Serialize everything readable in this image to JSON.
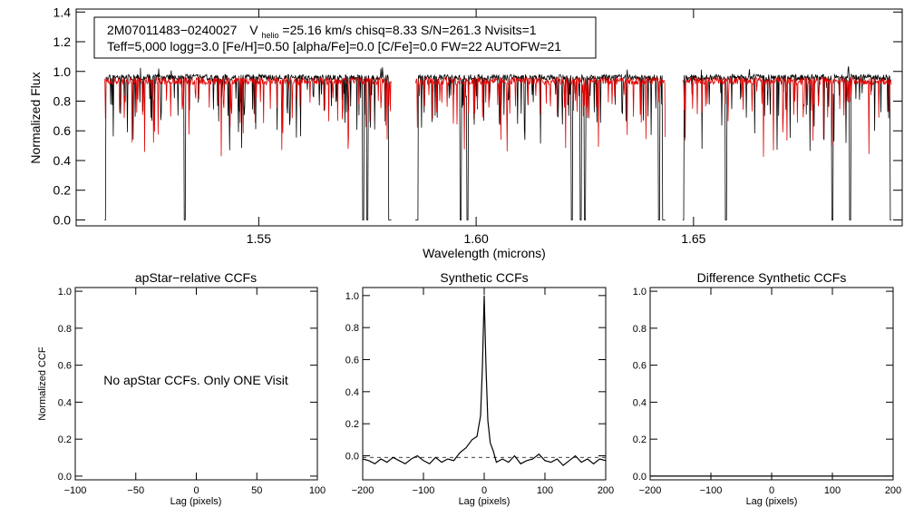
{
  "info_box": {
    "star_id": "2M07011483−0240027",
    "vhelio_prefix": "V",
    "vhelio_sub": "helio",
    "vhelio_rest": "=25.16 km/s  chisq=8.33  S/N=261.3  Nvisits=1",
    "line2": "Teff=5,000 logg=3.0 [Fe/H]=0.50 [alpha/Fe]=0.0 [C/Fe]=0.0 FW=22 AUTOFW=21"
  },
  "colors": {
    "observed": "#000000",
    "model": "#e00000",
    "axis": "#000000"
  },
  "chart_data": [
    {
      "type": "line",
      "xlabel": "Wavelength (microns)",
      "ylabel": "Normalized Flux",
      "xlim": [
        1.508,
        1.698
      ],
      "ylim": [
        -0.04,
        1.42
      ],
      "xticks": [
        1.55,
        1.6,
        1.65
      ],
      "xtick_labels": [
        "1.55",
        "1.60",
        "1.65"
      ],
      "yticks": [
        0.0,
        0.2,
        0.4,
        0.6,
        0.8,
        1.0,
        1.2,
        1.4
      ],
      "ytick_labels": [
        "0.0",
        "0.2",
        "0.4",
        "0.6",
        "0.8",
        "1.0",
        "1.2",
        "1.4"
      ],
      "chips": [
        [
          1.5145,
          1.5805
        ],
        [
          1.586,
          1.6435
        ],
        [
          1.6475,
          1.6955
        ]
      ],
      "strong_lines": [
        1.533,
        1.574,
        1.575,
        1.58,
        1.5865,
        1.5965,
        1.598,
        1.622,
        1.624,
        1.625,
        1.642,
        1.643,
        1.6475,
        1.6575,
        1.682,
        1.686,
        1.6955
      ],
      "series": [
        {
          "color": "#000000",
          "continuum": 0.98,
          "noise": 0.04
        },
        {
          "color": "#e00000",
          "continuum": 0.96,
          "noise": 0.05
        }
      ]
    },
    {
      "type": "line",
      "title": "apStar−relative CCFs",
      "xlabel": "Lag (pixels)",
      "ylabel": "Normalized CCF",
      "xlim": [
        -100,
        100
      ],
      "ylim": [
        -0.02,
        1.02
      ],
      "xticks": [
        -100,
        -50,
        0,
        50,
        100
      ],
      "xtick_labels": [
        "−100",
        "−50",
        "0",
        "50",
        "100"
      ],
      "yticks": [
        0.0,
        0.2,
        0.4,
        0.6,
        0.8,
        1.0
      ],
      "ytick_labels": [
        "0.0",
        "0.2",
        "0.4",
        "0.6",
        "0.8",
        "1.0"
      ],
      "annotation": "No apStar CCFs.  Only ONE Visit"
    },
    {
      "type": "line",
      "title": "Synthetic CCFs",
      "xlabel": "Lag (pixels)",
      "xlim": [
        -200,
        200
      ],
      "ylim": [
        -0.15,
        1.05
      ],
      "xticks": [
        -200,
        -100,
        0,
        100,
        200
      ],
      "xtick_labels": [
        "−200",
        "−100",
        "0",
        "100",
        "200"
      ],
      "yticks": [
        0.0,
        0.2,
        0.4,
        0.6,
        0.8,
        1.0
      ],
      "ytick_labels": [
        "0.0",
        "0.2",
        "0.4",
        "0.6",
        "0.8",
        "1.0"
      ],
      "baseline": -0.01,
      "peak": {
        "x": 0,
        "y": 1.0
      },
      "points": [
        [
          -200,
          -0.02
        ],
        [
          -190,
          -0.03
        ],
        [
          -180,
          -0.05
        ],
        [
          -170,
          -0.02
        ],
        [
          -160,
          -0.04
        ],
        [
          -150,
          -0.01
        ],
        [
          -140,
          -0.03
        ],
        [
          -130,
          -0.05
        ],
        [
          -120,
          -0.02
        ],
        [
          -110,
          0.0
        ],
        [
          -100,
          -0.03
        ],
        [
          -90,
          -0.05
        ],
        [
          -80,
          -0.01
        ],
        [
          -70,
          -0.04
        ],
        [
          -60,
          -0.02
        ],
        [
          -50,
          -0.03
        ],
        [
          -40,
          0.02
        ],
        [
          -30,
          0.05
        ],
        [
          -20,
          0.1
        ],
        [
          -12,
          0.12
        ],
        [
          -6,
          0.25
        ],
        [
          -3,
          0.55
        ],
        [
          0,
          1.0
        ],
        [
          3,
          0.55
        ],
        [
          6,
          0.22
        ],
        [
          10,
          0.08
        ],
        [
          15,
          0.03
        ],
        [
          20,
          -0.04
        ],
        [
          30,
          -0.02
        ],
        [
          40,
          -0.04
        ],
        [
          50,
          0.0
        ],
        [
          60,
          -0.05
        ],
        [
          70,
          -0.03
        ],
        [
          80,
          -0.02
        ],
        [
          90,
          0.01
        ],
        [
          100,
          -0.03
        ],
        [
          110,
          -0.04
        ],
        [
          120,
          -0.02
        ],
        [
          130,
          -0.06
        ],
        [
          140,
          -0.03
        ],
        [
          150,
          0.0
        ],
        [
          160,
          -0.04
        ],
        [
          170,
          -0.02
        ],
        [
          180,
          -0.05
        ],
        [
          190,
          -0.02
        ],
        [
          200,
          -0.03
        ]
      ]
    },
    {
      "type": "line",
      "title": "Difference Synthetic CCFs",
      "xlabel": "Lag (pixels)",
      "xlim": [
        -200,
        200
      ],
      "ylim": [
        -0.02,
        1.02
      ],
      "xticks": [
        -200,
        -100,
        0,
        100,
        200
      ],
      "xtick_labels": [
        "−200",
        "−100",
        "0",
        "100",
        "200"
      ],
      "yticks": [
        0.0,
        0.2,
        0.4,
        0.6,
        0.8,
        1.0
      ],
      "ytick_labels": [
        "0.0",
        "0.2",
        "0.4",
        "0.6",
        "0.8",
        "1.0"
      ],
      "points": [
        [
          -200,
          0.0
        ],
        [
          200,
          0.0
        ]
      ]
    }
  ]
}
